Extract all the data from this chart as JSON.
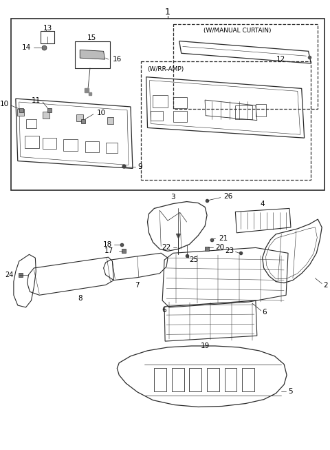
{
  "bg_color": "#ffffff",
  "line_color": "#2a2a2a",
  "text_color": "#000000",
  "fig_width": 4.8,
  "fig_height": 6.53,
  "dpi": 100
}
